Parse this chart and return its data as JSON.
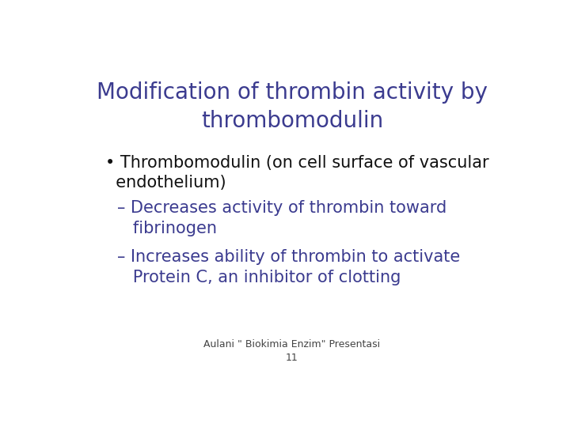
{
  "title_line1": "Modification of thrombin activity by",
  "title_line2": "thrombomodulin",
  "title_color": "#3b3b8f",
  "title_fontsize": 20,
  "bullet_line1": "• Thrombomodulin (on cell surface of vascular",
  "bullet_line2": "  endothelium)",
  "bullet_color": "#111111",
  "bullet_fontsize": 15,
  "sub1_line1": "– Decreases activity of thrombin toward",
  "sub1_line2": "   fibrinogen",
  "sub2_line1": "– Increases ability of thrombin to activate",
  "sub2_line2": "   Protein C, an inhibitor of clotting",
  "sub_color": "#3b3b8f",
  "sub_fontsize": 15,
  "footer1": "Aulani \" Biokimia Enzim\" Presentasi",
  "footer2": "11",
  "footer_color": "#444444",
  "footer_fontsize": 9,
  "bg_color": "#ffffff"
}
